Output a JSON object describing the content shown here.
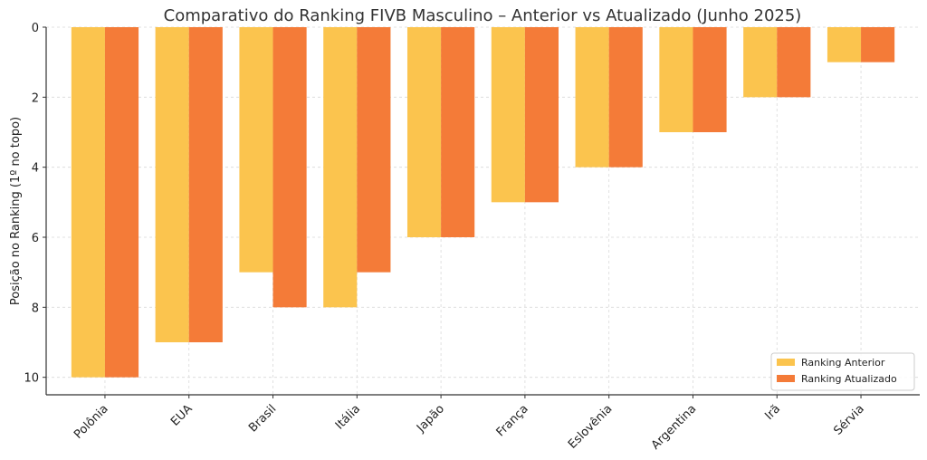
{
  "chart_data": {
    "type": "bar",
    "title": "Comparativo do Ranking FIVB Masculino – Anterior vs Atualizado (Junho 2025)",
    "xlabel": "",
    "ylabel": "Posição no Ranking (1º no topo)",
    "categories": [
      "Polônia",
      "EUA",
      "Brasil",
      "Itália",
      "Japão",
      "França",
      "Eslovênia",
      "Argentina",
      "Irã",
      "Sérvia"
    ],
    "series": [
      {
        "name": "Ranking Anterior",
        "values": [
          10,
          9,
          7,
          8,
          6,
          5,
          4,
          3,
          2,
          1
        ],
        "color": "#fbc44e"
      },
      {
        "name": "Ranking Atualizado",
        "values": [
          10,
          9,
          8,
          7,
          6,
          5,
          4,
          3,
          2,
          1
        ],
        "color": "#f47b38"
      }
    ],
    "ylim": [
      0,
      10.5
    ],
    "y_inverted": true,
    "yticks": [
      0,
      2,
      4,
      6,
      8,
      10
    ],
    "grid": true,
    "legend_position": "lower-right"
  }
}
